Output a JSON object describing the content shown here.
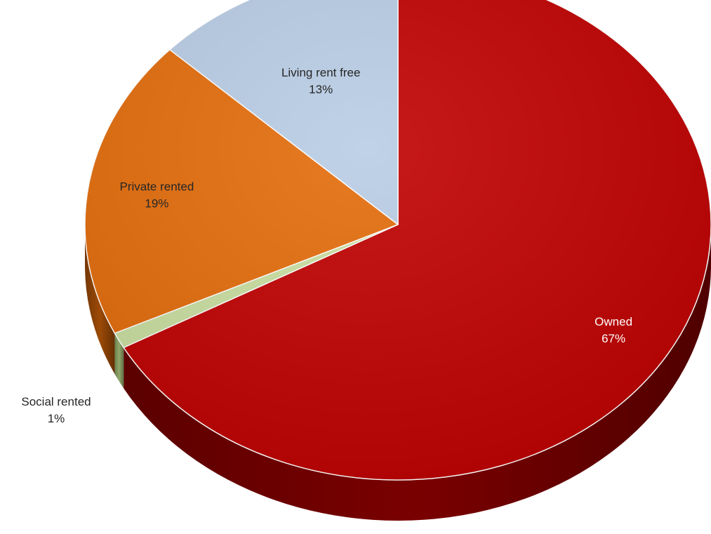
{
  "chart_data": {
    "type": "pie",
    "title": "",
    "style": "3d",
    "slices": [
      {
        "name": "Owned",
        "value": 67,
        "label": "67%",
        "color": "#c00000",
        "side_color": "#7a0000"
      },
      {
        "name": "Social rented",
        "value": 1,
        "label": "1%",
        "color": "#c9dfa0",
        "side_color": "#8fa86a"
      },
      {
        "name": "Private rented",
        "value": 19,
        "label": "19%",
        "color": "#e46c0a",
        "side_color": "#9c4a06"
      },
      {
        "name": "Living rent free",
        "value": 13,
        "label": "13%",
        "color": "#b9cde5",
        "side_color": "#7f92ab"
      }
    ]
  }
}
